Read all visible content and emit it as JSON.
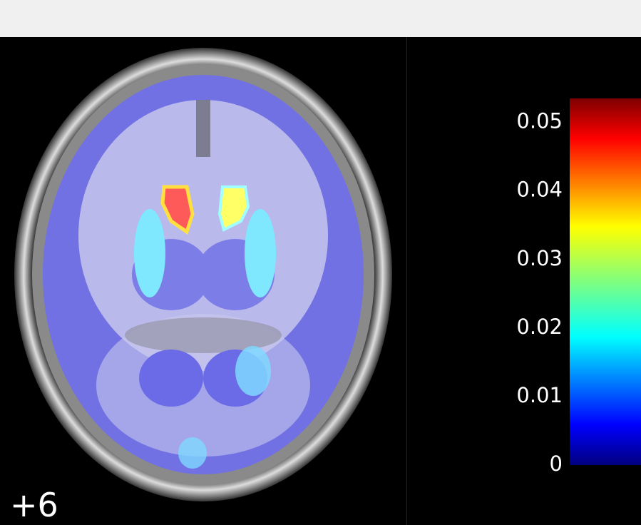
{
  "slice_label": "+6",
  "colorbar": {
    "colormap": "jet",
    "clim": [
      0,
      0.0535
    ],
    "ticks": [
      0,
      0.01,
      0.02,
      0.03,
      0.04,
      0.05
    ]
  }
}
